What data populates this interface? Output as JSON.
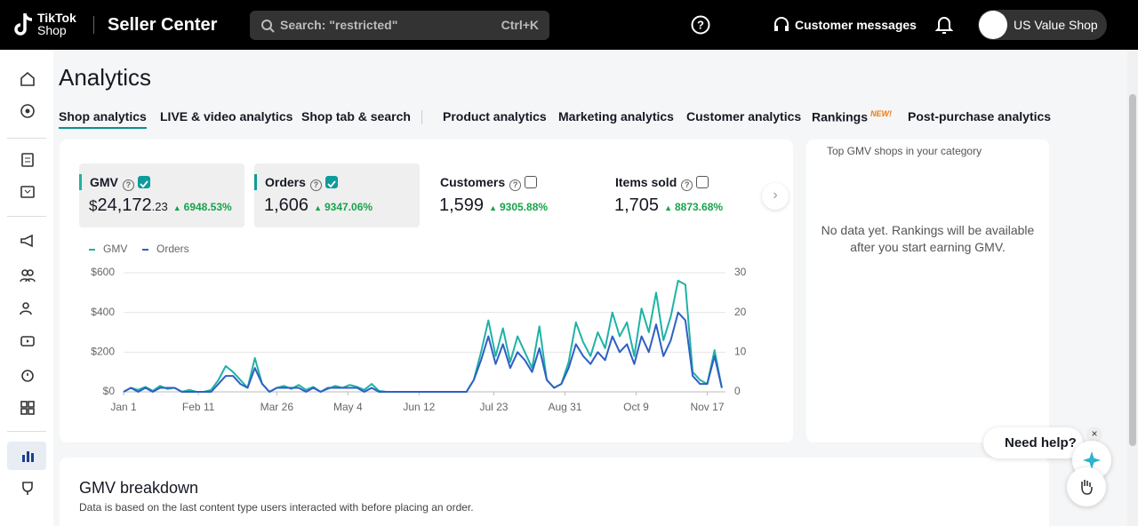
{
  "header": {
    "logo_top": "TikTok",
    "logo_bottom": "Shop",
    "product": "Seller Center",
    "search_placeholder": "Search: \"restricted\"",
    "search_shortcut": "Ctrl+K",
    "messages": "Customer messages",
    "shop_name": "US Value Shop"
  },
  "page": {
    "title": "Analytics",
    "tabs": [
      {
        "label": "Shop analytics",
        "active": true
      },
      {
        "label": "LIVE & video analytics"
      },
      {
        "label": "Shop tab & search"
      },
      {
        "label": "Product analytics"
      },
      {
        "label": "Marketing analytics"
      },
      {
        "label": "Customer analytics"
      },
      {
        "label": "Rankings",
        "badge": "NEW!"
      },
      {
        "label": "Post-purchase analytics"
      }
    ]
  },
  "metrics": [
    {
      "label": "GMV",
      "currency": "$",
      "value": "24,172",
      "cents": ".23",
      "change": "6948.53%",
      "checked": true
    },
    {
      "label": "Orders",
      "value": "1,606",
      "change": "9347.06%",
      "checked": true
    },
    {
      "label": "Customers",
      "value": "1,599",
      "change": "9305.88%",
      "checked": false
    },
    {
      "label": "Items sold",
      "value": "1,705",
      "change": "8873.68%",
      "checked": false
    }
  ],
  "chart_data": {
    "type": "line",
    "x": [
      0,
      4,
      8,
      12,
      16,
      20,
      24,
      28,
      32,
      36,
      40,
      44,
      48,
      52,
      56,
      60,
      64,
      68,
      72,
      76,
      80,
      84,
      88,
      92,
      96,
      100,
      104,
      108,
      112,
      116,
      120,
      124,
      128,
      132,
      136,
      140,
      144,
      148,
      152,
      156,
      160,
      164,
      168,
      172,
      176,
      180,
      184,
      188,
      192,
      196,
      200,
      204,
      208,
      212,
      216,
      220,
      224,
      228,
      232,
      236,
      240,
      244,
      248,
      252,
      256,
      260,
      264,
      268,
      272,
      276,
      280,
      284,
      288,
      292,
      296,
      300,
      304,
      308,
      312,
      316,
      320,
      324,
      328
    ],
    "xlim": [
      0,
      330
    ],
    "xticks": [
      {
        "value": 0,
        "label": "Jan 1"
      },
      {
        "value": 41,
        "label": "Feb 11"
      },
      {
        "value": 84,
        "label": "Mar 26"
      },
      {
        "value": 123,
        "label": "May 4"
      },
      {
        "value": 162,
        "label": "Jun 12"
      },
      {
        "value": 203,
        "label": "Jul 23"
      },
      {
        "value": 242,
        "label": "Aug 31"
      },
      {
        "value": 281,
        "label": "Oct 9"
      },
      {
        "value": 320,
        "label": "Nov 17"
      }
    ],
    "ylim": [
      0,
      600
    ],
    "yticks": [
      {
        "value": 0,
        "label": "$0"
      },
      {
        "value": 200,
        "label": "$200"
      },
      {
        "value": 400,
        "label": "$400"
      },
      {
        "value": 600,
        "label": "$600"
      }
    ],
    "y2lim": [
      0,
      30
    ],
    "y2ticks": [
      0,
      10,
      20,
      30
    ],
    "grid": true,
    "series": [
      {
        "name": "GMV",
        "color": "#1fb2a6",
        "values": [
          0,
          20,
          10,
          25,
          5,
          30,
          15,
          20,
          0,
          10,
          0,
          0,
          10,
          60,
          130,
          100,
          60,
          20,
          170,
          40,
          0,
          20,
          30,
          15,
          35,
          10,
          25,
          0,
          15,
          30,
          20,
          35,
          25,
          10,
          40,
          5,
          0,
          0,
          0,
          0,
          0,
          0,
          0,
          0,
          0,
          0,
          0,
          0,
          60,
          200,
          360,
          180,
          320,
          150,
          280,
          200,
          120,
          330,
          60,
          20,
          40,
          150,
          350,
          250,
          180,
          300,
          220,
          400,
          280,
          350,
          180,
          420,
          300,
          500,
          260,
          380,
          560,
          540,
          100,
          60,
          40,
          210,
          20
        ]
      },
      {
        "name": "Orders",
        "color": "#2f5fc4",
        "axis": "y2",
        "values": [
          0,
          1,
          0,
          1,
          0,
          1,
          1,
          1,
          0,
          0,
          0,
          0,
          0,
          2,
          4,
          4,
          2,
          1,
          6,
          2,
          0,
          1,
          1,
          1,
          1,
          0,
          1,
          0,
          1,
          1,
          1,
          1,
          1,
          0,
          1,
          0,
          0,
          0,
          0,
          0,
          0,
          0,
          0,
          0,
          0,
          0,
          0,
          0,
          3,
          8,
          14,
          7,
          12,
          6,
          10,
          8,
          5,
          11,
          3,
          1,
          2,
          6,
          12,
          9,
          7,
          10,
          8,
          14,
          10,
          12,
          7,
          14,
          10,
          17,
          9,
          13,
          20,
          18,
          4,
          2,
          2,
          9,
          1
        ]
      }
    ]
  },
  "rankings": {
    "title": "Top GMV shops in your category",
    "empty": "No data yet. Rankings will be available after you start earning GMV."
  },
  "help": {
    "label": "Need help?"
  },
  "breakdown": {
    "title": "GMV breakdown",
    "subtitle": "Data is based on the last content type users interacted with before placing an order."
  }
}
